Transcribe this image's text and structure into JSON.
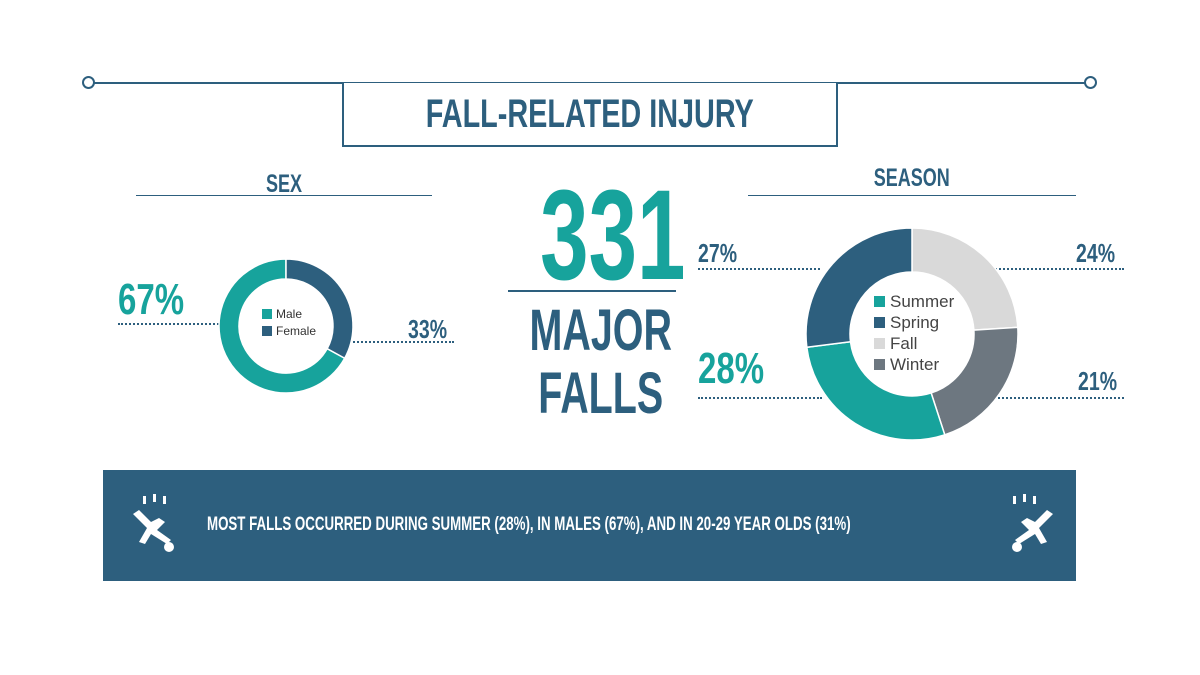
{
  "title": "FALL-RELATED INJURY",
  "sex": {
    "heading": "SEX",
    "male_pct_label": "67%",
    "female_pct_label": "33%"
  },
  "headline": {
    "number": "331",
    "label_line1": "MAJOR",
    "label_line2": "FALLS"
  },
  "season": {
    "heading": "SEASON",
    "spring_pct_label": "27%",
    "fall_pct_label": "24%",
    "summer_pct_label": "28%",
    "winter_pct_label": "21%"
  },
  "banner": {
    "text": "MOST FALLS OCCURRED DURING SUMMER (28%), IN MALES (67%),  AND IN 20-29 YEAR OLDS (31%)",
    "icon": "falling-person-icon"
  },
  "colors": {
    "teal": "#17a39c",
    "navy": "#2d5f7e",
    "light_gray": "#d9d9d9",
    "dark_gray": "#6d7780"
  },
  "chart_data": [
    {
      "type": "pie",
      "donut": true,
      "title": "SEX",
      "categories": [
        "Male",
        "Female"
      ],
      "values": [
        67,
        33
      ],
      "colors": [
        "#17a39c",
        "#2d5f7e"
      ],
      "legend_placement": "center"
    },
    {
      "type": "pie",
      "donut": true,
      "title": "SEASON",
      "categories": [
        "Summer",
        "Spring",
        "Fall",
        "Winter"
      ],
      "values": [
        28,
        27,
        24,
        21
      ],
      "colors": [
        "#17a39c",
        "#2d5f7e",
        "#d9d9d9",
        "#6d7780"
      ],
      "legend_placement": "center"
    }
  ]
}
